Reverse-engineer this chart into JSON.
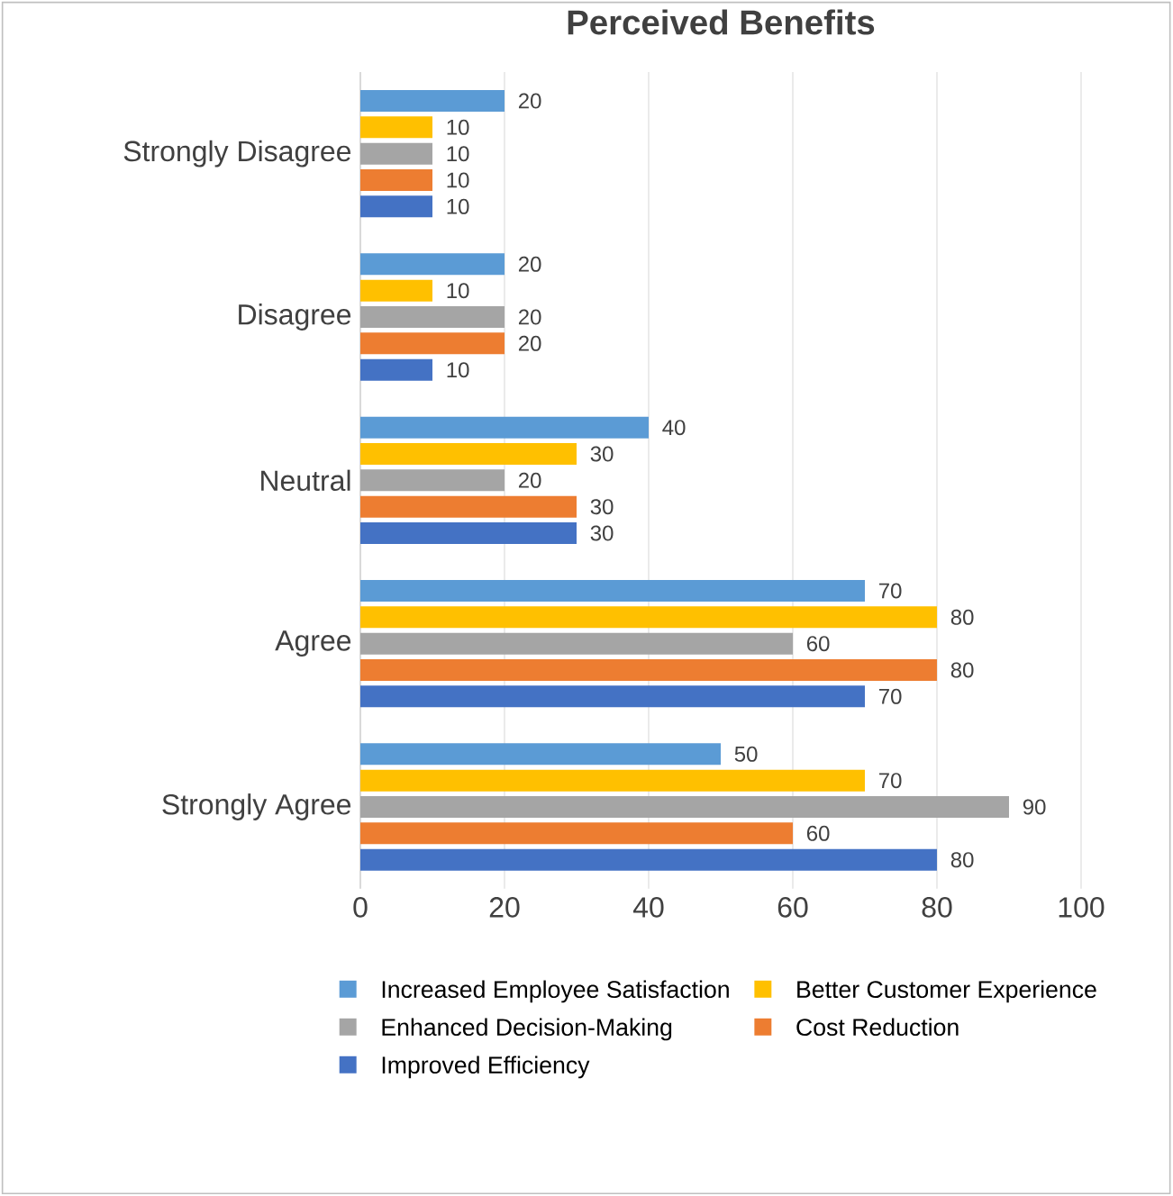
{
  "chart_data": {
    "type": "bar",
    "orientation": "horizontal",
    "title": "Perceived Benefits",
    "categories": [
      "Strongly Disagree",
      "Disagree",
      "Neutral",
      "Agree",
      "Strongly Agree"
    ],
    "series": [
      {
        "name": "Improved Efficiency",
        "color": "#4472c4",
        "values": [
          10,
          10,
          30,
          70,
          80
        ]
      },
      {
        "name": "Cost Reduction",
        "color": "#ed7d31",
        "values": [
          10,
          20,
          30,
          80,
          60
        ]
      },
      {
        "name": "Enhanced Decision-Making",
        "color": "#a5a5a5",
        "values": [
          10,
          20,
          20,
          60,
          90
        ]
      },
      {
        "name": "Better Customer Experience",
        "color": "#ffc000",
        "values": [
          10,
          10,
          30,
          80,
          70
        ]
      },
      {
        "name": "Increased Employee Satisfaction",
        "color": "#5b9bd5",
        "values": [
          20,
          20,
          40,
          70,
          50
        ]
      }
    ],
    "xlim": [
      0,
      100
    ],
    "xticks": [
      0,
      20,
      40,
      60,
      80,
      100
    ],
    "grid": "x",
    "legend": "bottom",
    "data_labels": true
  }
}
